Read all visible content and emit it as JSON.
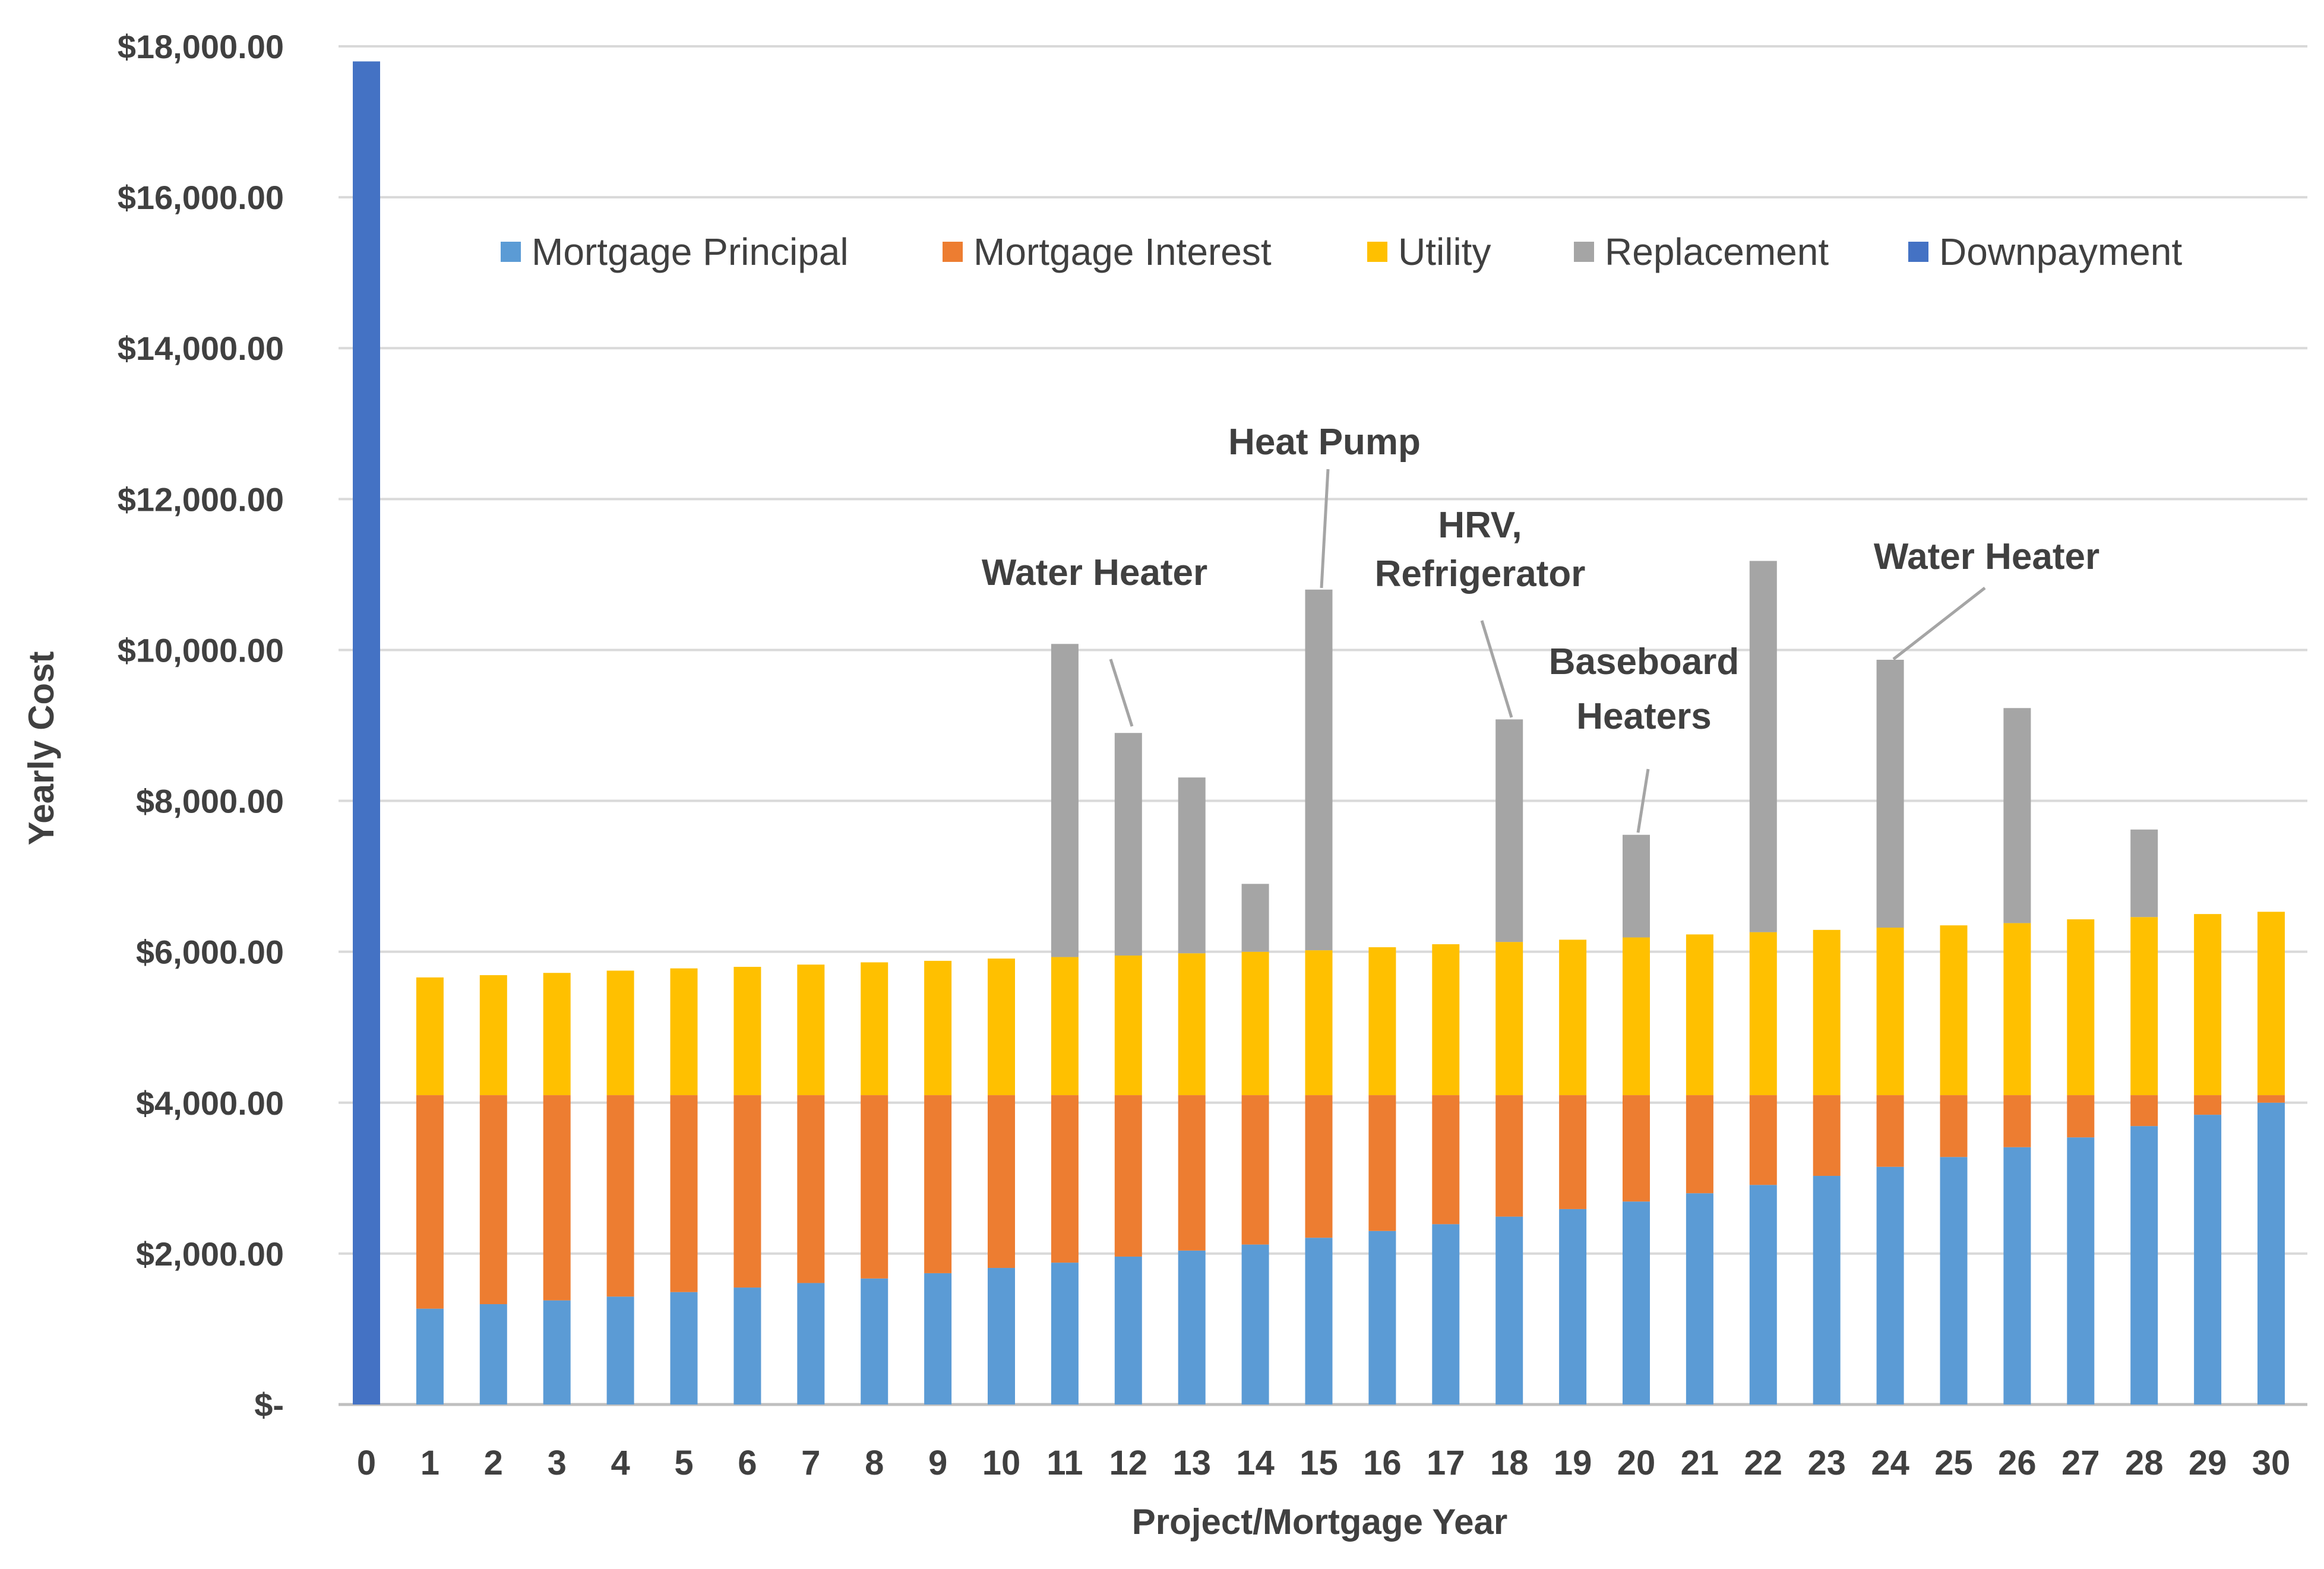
{
  "chart_data": {
    "type": "bar",
    "stacked": true,
    "title": "",
    "xlabel": "Project/Mortgage Year",
    "ylabel": "Yearly Cost",
    "ylim": [
      0,
      18000
    ],
    "y_ticks": [
      0,
      2000,
      4000,
      6000,
      8000,
      10000,
      12000,
      14000,
      16000,
      18000
    ],
    "y_tick_labels": [
      "$-",
      "$2,000.00",
      "$4,000.00",
      "$6,000.00",
      "$8,000.00",
      "$10,000.00",
      "$12,000.00",
      "$14,000.00",
      "$16,000.00",
      "$18,000.00"
    ],
    "grid": true,
    "legend_position": "top",
    "categories": [
      "0",
      "1",
      "2",
      "3",
      "4",
      "5",
      "6",
      "7",
      "8",
      "9",
      "10",
      "11",
      "12",
      "13",
      "14",
      "15",
      "16",
      "17",
      "18",
      "19",
      "20",
      "21",
      "22",
      "23",
      "24",
      "25",
      "26",
      "27",
      "28",
      "29",
      "30"
    ],
    "series": [
      {
        "name": "Mortgage Principal",
        "color": "#5B9BD5",
        "values": [
          0,
          1270,
          1330,
          1380,
          1430,
          1490,
          1550,
          1610,
          1670,
          1740,
          1810,
          1880,
          1960,
          2040,
          2120,
          2210,
          2300,
          2390,
          2490,
          2590,
          2690,
          2800,
          2910,
          3030,
          3150,
          3280,
          3410,
          3540,
          3690,
          3840,
          4000
        ]
      },
      {
        "name": "Mortgage Interest",
        "color": "#ED7D31",
        "values": [
          0,
          2830,
          2770,
          2720,
          2670,
          2610,
          2550,
          2490,
          2430,
          2360,
          2290,
          2220,
          2140,
          2060,
          1980,
          1890,
          1800,
          1710,
          1610,
          1510,
          1410,
          1300,
          1190,
          1070,
          950,
          820,
          690,
          560,
          410,
          260,
          100
        ]
      },
      {
        "name": "Utility",
        "color": "#FFC000",
        "values": [
          0,
          1560,
          1590,
          1620,
          1650,
          1680,
          1700,
          1730,
          1760,
          1780,
          1810,
          1830,
          1850,
          1880,
          1900,
          1920,
          1960,
          2000,
          2030,
          2060,
          2090,
          2130,
          2160,
          2190,
          2220,
          2250,
          2280,
          2330,
          2360,
          2400,
          2430
        ]
      },
      {
        "name": "Replacement",
        "color": "#A5A5A5",
        "values": [
          0,
          0,
          0,
          0,
          0,
          0,
          0,
          0,
          0,
          0,
          0,
          4150,
          2950,
          2330,
          900,
          4780,
          0,
          0,
          2950,
          0,
          1360,
          0,
          4920,
          0,
          3550,
          0,
          2850,
          0,
          1160,
          0,
          0
        ]
      },
      {
        "name": "Downpayment",
        "color": "#4472C4",
        "values": [
          17800,
          0,
          0,
          0,
          0,
          0,
          0,
          0,
          0,
          0,
          0,
          0,
          0,
          0,
          0,
          0,
          0,
          0,
          0,
          0,
          0,
          0,
          0,
          0,
          0,
          0,
          0,
          0,
          0,
          0,
          0
        ]
      }
    ],
    "annotations": [
      {
        "target_year": "12",
        "lines": [
          "Water Heater"
        ]
      },
      {
        "target_year": "15",
        "lines": [
          "Heat Pump"
        ]
      },
      {
        "target_year": "18",
        "lines": [
          "HRV,",
          "Refrigerator"
        ]
      },
      {
        "target_year": "20",
        "lines": [
          "Baseboard",
          "Heaters"
        ]
      },
      {
        "target_year": "24",
        "lines": [
          "Water Heater"
        ]
      }
    ]
  }
}
